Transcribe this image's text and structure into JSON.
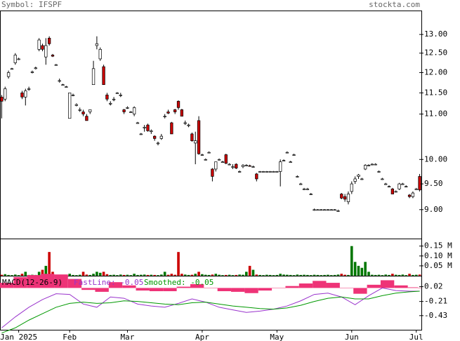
{
  "header": {
    "symbol": "Symbol: IFSPF",
    "site": "stockta.com"
  },
  "chart_data": [
    {
      "type": "candlestick",
      "log_scale": true,
      "ylim": [
        8.47,
        13.67
      ],
      "xlim": [
        -0.5,
        123.5
      ],
      "up_color": "#ffffff",
      "down_color": "#cc0000",
      "yticks": [
        {
          "value": 9,
          "label": "9.00"
        },
        {
          "value": 9.5,
          "label": "9.50"
        },
        {
          "value": 10,
          "label": "10.00"
        },
        {
          "value": 11,
          "label": "11.00"
        },
        {
          "value": 11.5,
          "label": "11.50"
        },
        {
          "value": 12,
          "label": "12.00"
        },
        {
          "value": 12.5,
          "label": "12.50"
        },
        {
          "value": 13,
          "label": "13.00"
        }
      ],
      "ohlc": [
        [
          11.4,
          11.45,
          10.9,
          11.3
        ],
        [
          11.35,
          11.65,
          11.3,
          11.6
        ],
        [
          11.9,
          12.05,
          11.85,
          12.0
        ],
        [
          12.1,
          12.12,
          12.08,
          12.1
        ],
        [
          12.25,
          12.5,
          12.2,
          12.45
        ],
        [
          12.35,
          12.38,
          12.32,
          12.35
        ],
        [
          11.5,
          11.55,
          11.35,
          11.4
        ],
        [
          11.4,
          11.6,
          11.2,
          11.55
        ],
        [
          11.6,
          11.65,
          11.55,
          11.6
        ],
        [
          12.0,
          12.05,
          11.98,
          12.02
        ],
        [
          12.1,
          12.15,
          12.08,
          12.12
        ],
        [
          12.6,
          12.9,
          12.55,
          12.85
        ],
        [
          12.7,
          12.75,
          12.55,
          12.6
        ],
        [
          12.4,
          12.9,
          12.2,
          12.7
        ],
        [
          12.9,
          12.95,
          12.7,
          12.75
        ],
        [
          12.45,
          12.48,
          12.4,
          12.42
        ],
        [
          12.2,
          12.22,
          12.18,
          12.2
        ],
        [
          11.8,
          11.85,
          11.75,
          11.8
        ],
        [
          11.7,
          11.72,
          11.68,
          11.7
        ],
        [
          11.65,
          11.67,
          11.63,
          11.65
        ],
        [
          10.9,
          11.5,
          10.9,
          11.5
        ],
        [
          11.45,
          11.48,
          11.42,
          11.45
        ],
        [
          11.2,
          11.25,
          11.18,
          11.22
        ],
        [
          11.1,
          11.15,
          11.05,
          11.1
        ],
        [
          11.05,
          11.1,
          10.95,
          11.0
        ],
        [
          10.95,
          11.0,
          10.85,
          10.85
        ],
        [
          11.05,
          11.1,
          11.0,
          11.1
        ],
        [
          11.7,
          12.3,
          11.7,
          12.1
        ],
        [
          12.7,
          12.95,
          12.6,
          12.75
        ],
        [
          12.35,
          12.65,
          12.3,
          12.6
        ],
        [
          12.15,
          12.2,
          11.7,
          11.7
        ],
        [
          11.45,
          11.5,
          11.3,
          11.35
        ],
        [
          11.25,
          11.3,
          11.2,
          11.25
        ],
        [
          11.35,
          11.4,
          11.3,
          11.35
        ],
        [
          11.5,
          11.52,
          11.48,
          11.5
        ],
        [
          11.45,
          11.5,
          11.4,
          11.45
        ],
        [
          11.1,
          11.12,
          11.0,
          11.05
        ],
        [
          11.15,
          11.18,
          11.12,
          11.15
        ],
        [
          11.05,
          11.07,
          11.03,
          11.05
        ],
        [
          11.0,
          11.18,
          10.95,
          11.15
        ],
        [
          10.8,
          10.82,
          10.78,
          10.8
        ],
        [
          10.55,
          10.57,
          10.53,
          10.55
        ],
        [
          10.7,
          10.75,
          10.6,
          10.7
        ],
        [
          10.75,
          10.78,
          10.6,
          10.62
        ],
        [
          10.6,
          10.65,
          10.55,
          10.62
        ],
        [
          10.5,
          10.52,
          10.4,
          10.45
        ],
        [
          10.35,
          10.38,
          10.3,
          10.35
        ],
        [
          10.45,
          10.55,
          10.42,
          10.5
        ],
        [
          10.95,
          11.0,
          10.9,
          10.95
        ],
        [
          11.05,
          11.1,
          11.0,
          11.02
        ],
        [
          10.8,
          10.82,
          10.55,
          10.55
        ],
        [
          11.1,
          11.12,
          11.0,
          11.05
        ],
        [
          11.3,
          11.32,
          11.1,
          11.15
        ],
        [
          11.1,
          11.12,
          10.95,
          10.95
        ],
        [
          10.8,
          10.85,
          10.75,
          10.8
        ],
        [
          10.75,
          10.78,
          10.7,
          10.75
        ],
        [
          10.55,
          10.58,
          10.38,
          10.4
        ],
        [
          10.35,
          10.6,
          9.9,
          10.4
        ],
        [
          10.85,
          10.95,
          10.1,
          10.12
        ],
        [
          10.1,
          10.12,
          10.08,
          10.1
        ],
        [
          10.0,
          10.02,
          9.98,
          10.0
        ],
        [
          10.15,
          10.17,
          10.13,
          10.15
        ],
        [
          9.8,
          9.82,
          9.55,
          9.65
        ],
        [
          9.8,
          9.95,
          9.75,
          9.95
        ],
        [
          10.0,
          10.02,
          9.98,
          10.0
        ],
        [
          9.95,
          9.97,
          9.93,
          9.95
        ],
        [
          10.1,
          10.12,
          9.9,
          9.92
        ],
        [
          9.9,
          9.92,
          9.88,
          9.9
        ],
        [
          9.85,
          9.9,
          9.8,
          9.85
        ],
        [
          9.9,
          9.92,
          9.8,
          9.82
        ],
        [
          9.75,
          9.77,
          9.73,
          9.75
        ],
        [
          9.85,
          9.9,
          9.82,
          9.88
        ],
        [
          9.88,
          9.9,
          9.86,
          9.88
        ],
        [
          9.87,
          9.89,
          9.85,
          9.86
        ],
        [
          9.85,
          9.87,
          9.83,
          9.85
        ],
        [
          9.7,
          9.72,
          9.55,
          9.6
        ],
        [
          9.75,
          9.76,
          9.74,
          9.75
        ],
        [
          9.75,
          9.76,
          9.74,
          9.75
        ],
        [
          9.75,
          9.76,
          9.74,
          9.75
        ],
        [
          9.75,
          9.76,
          9.74,
          9.75
        ],
        [
          9.75,
          9.76,
          9.74,
          9.75
        ],
        [
          9.75,
          9.76,
          9.74,
          9.75
        ],
        [
          9.75,
          10.0,
          9.45,
          9.95
        ],
        [
          9.98,
          10.0,
          9.96,
          9.98
        ],
        [
          10.15,
          10.17,
          10.13,
          10.15
        ],
        [
          9.95,
          9.97,
          9.93,
          9.95
        ],
        [
          10.1,
          10.12,
          10.08,
          10.1
        ],
        [
          9.65,
          9.67,
          9.63,
          9.65
        ],
        [
          9.5,
          9.52,
          9.48,
          9.5
        ],
        [
          9.4,
          9.42,
          9.38,
          9.4
        ],
        [
          9.4,
          9.42,
          9.38,
          9.4
        ],
        [
          9.3,
          9.32,
          9.28,
          9.3
        ],
        [
          9.0,
          9.02,
          8.98,
          9.0
        ],
        [
          9.0,
          9.01,
          8.99,
          9.0
        ],
        [
          9.0,
          9.01,
          8.99,
          9.0
        ],
        [
          9.0,
          9.01,
          8.99,
          9.0
        ],
        [
          9.0,
          9.01,
          8.99,
          9.0
        ],
        [
          9.0,
          9.01,
          8.99,
          9.0
        ],
        [
          9.0,
          9.01,
          8.99,
          9.0
        ],
        [
          8.98,
          9.0,
          8.96,
          8.98
        ],
        [
          9.3,
          9.32,
          9.2,
          9.22
        ],
        [
          9.25,
          9.3,
          9.15,
          9.2
        ],
        [
          9.15,
          9.35,
          9.1,
          9.3
        ],
        [
          9.35,
          9.55,
          9.3,
          9.5
        ],
        [
          9.55,
          9.65,
          9.5,
          9.6
        ],
        [
          9.65,
          9.7,
          9.6,
          9.68
        ],
        [
          9.6,
          9.62,
          9.58,
          9.6
        ],
        [
          9.8,
          9.9,
          9.78,
          9.88
        ],
        [
          9.88,
          9.9,
          9.86,
          9.88
        ],
        [
          9.9,
          9.92,
          9.88,
          9.9
        ],
        [
          9.9,
          9.92,
          9.88,
          9.9
        ],
        [
          9.75,
          9.77,
          9.73,
          9.75
        ],
        [
          9.6,
          9.62,
          9.58,
          9.6
        ],
        [
          9.5,
          9.52,
          9.48,
          9.5
        ],
        [
          9.45,
          9.47,
          9.43,
          9.45
        ],
        [
          9.4,
          9.42,
          9.3,
          9.3
        ],
        [
          9.35,
          9.37,
          9.33,
          9.35
        ],
        [
          9.4,
          9.52,
          9.38,
          9.5
        ],
        [
          9.5,
          9.52,
          9.48,
          9.5
        ],
        [
          9.45,
          9.47,
          9.43,
          9.45
        ],
        [
          9.28,
          9.3,
          9.22,
          9.25
        ],
        [
          9.25,
          9.35,
          9.22,
          9.32
        ],
        [
          9.4,
          9.42,
          9.38,
          9.4
        ],
        [
          9.65,
          9.7,
          9.35,
          9.38
        ]
      ]
    },
    {
      "type": "volume",
      "ylim": [
        0,
        0.188
      ],
      "xlim": [
        -0.5,
        123.5
      ],
      "up_color": "#007700",
      "down_color": "#cc0000",
      "yticks": [
        {
          "value": 0.05,
          "label": "0.05 M"
        },
        {
          "value": 0.1,
          "label": "0.10 M"
        },
        {
          "value": 0.15,
          "label": "0.15 M"
        }
      ],
      "values": [
        0.005,
        0.008,
        0.004,
        0.003,
        0.006,
        0.003,
        0.01,
        0.02,
        0.004,
        0.005,
        0.004,
        0.02,
        0.03,
        0.05,
        0.12,
        0.02,
        0.004,
        0.003,
        0.005,
        0.004,
        0.01,
        0.004,
        0.003,
        0.005,
        0.02,
        0.006,
        0.004,
        0.01,
        0.02,
        0.015,
        0.02,
        0.008,
        0.004,
        0.005,
        0.003,
        0.006,
        0.004,
        0.005,
        0.003,
        0.01,
        0.004,
        0.005,
        0.006,
        0.004,
        0.005,
        0.004,
        0.003,
        0.006,
        0.02,
        0.005,
        0.01,
        0.005,
        0.12,
        0.01,
        0.006,
        0.004,
        0.005,
        0.01,
        0.02,
        0.008,
        0.005,
        0.004,
        0.006,
        0.01,
        0.005,
        0.003,
        0.004,
        0.005,
        0.003,
        0.004,
        0.006,
        0.005,
        0.02,
        0.05,
        0.03,
        0.006,
        0.004,
        0.003,
        0.005,
        0.004,
        0.003,
        0.004,
        0.01,
        0.006,
        0.005,
        0.004,
        0.003,
        0.006,
        0.004,
        0.005,
        0.004,
        0.003,
        0.005,
        0.004,
        0.003,
        0.004,
        0.005,
        0.003,
        0.004,
        0.006,
        0.01,
        0.005,
        0.004,
        0.15,
        0.07,
        0.05,
        0.04,
        0.07,
        0.02,
        0.005,
        0.004,
        0.005,
        0.003,
        0.006,
        0.004,
        0.01,
        0.005,
        0.004,
        0.006,
        0.003,
        0.01,
        0.004,
        0.005,
        0.006
      ]
    },
    {
      "type": "macd",
      "title": "MACD(12-26-9)",
      "ylim": [
        -0.65,
        0.19
      ],
      "xlim": [
        -0.5,
        123.5
      ],
      "yticks": [
        {
          "value": -0.43,
          "label": "-0.43"
        },
        {
          "value": -0.21,
          "label": "-0.21"
        },
        {
          "value": 0.02,
          "label": "0.02"
        }
      ],
      "xticks": [
        {
          "value": 5,
          "label": "Jan 2025"
        },
        {
          "value": 20,
          "label": "Feb"
        },
        {
          "value": 37,
          "label": "Mar"
        },
        {
          "value": 59,
          "label": "Apr"
        },
        {
          "value": 81,
          "label": "May"
        },
        {
          "value": 103,
          "label": "Jun"
        },
        {
          "value": 122,
          "label": "Jul"
        }
      ],
      "x": [
        0,
        4,
        8,
        12,
        16,
        20,
        24,
        28,
        32,
        36,
        40,
        44,
        48,
        52,
        56,
        60,
        64,
        68,
        72,
        76,
        80,
        84,
        88,
        92,
        96,
        100,
        104,
        108,
        112,
        116,
        120,
        123
      ],
      "histogram": {
        "color": "#ee3377",
        "values": [
          0.08,
          0.17,
          0.2,
          0.22,
          0.21,
          0.14,
          -0.03,
          -0.06,
          0.09,
          0.04,
          -0.04,
          -0.05,
          -0.05,
          0.02,
          0.06,
          0.0,
          -0.05,
          -0.06,
          -0.08,
          -0.04,
          0.0,
          0.03,
          0.07,
          0.11,
          0.08,
          0.0,
          -0.09,
          0.05,
          0.12,
          0.04,
          0.01,
          0.0
        ]
      },
      "series": [
        {
          "name": "FastLine: -0.05",
          "color": "#9933cc",
          "values": [
            -0.62,
            -0.45,
            -0.3,
            -0.18,
            -0.09,
            -0.1,
            -0.25,
            -0.3,
            -0.14,
            -0.16,
            -0.25,
            -0.28,
            -0.3,
            -0.24,
            -0.17,
            -0.22,
            -0.3,
            -0.34,
            -0.38,
            -0.36,
            -0.33,
            -0.28,
            -0.2,
            -0.1,
            -0.08,
            -0.14,
            -0.26,
            -0.12,
            0.0,
            -0.04,
            -0.05,
            -0.05
          ]
        },
        {
          "name": "Smoothed: -0.05",
          "color": "#009900",
          "values": [
            -0.7,
            -0.62,
            -0.5,
            -0.4,
            -0.3,
            -0.24,
            -0.22,
            -0.24,
            -0.23,
            -0.2,
            -0.21,
            -0.23,
            -0.25,
            -0.26,
            -0.23,
            -0.22,
            -0.25,
            -0.28,
            -0.3,
            -0.32,
            -0.33,
            -0.31,
            -0.27,
            -0.21,
            -0.16,
            -0.14,
            -0.17,
            -0.17,
            -0.12,
            -0.08,
            -0.06,
            -0.05
          ]
        }
      ]
    }
  ]
}
